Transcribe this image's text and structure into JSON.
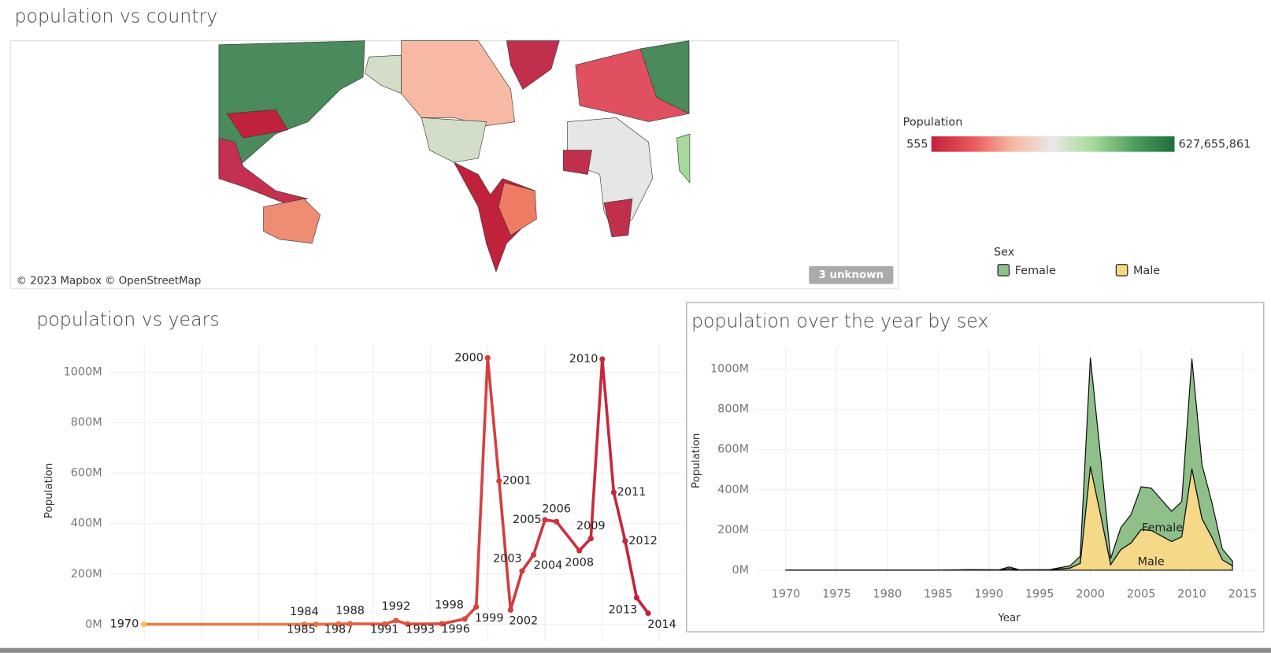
{
  "chart_data": [
    {
      "type": "map",
      "title": "population vs country",
      "attribution": "© 2023 Mapbox © OpenStreetMap",
      "unknown_note": "3 unknown",
      "legend_title": "Population",
      "color_min": 555,
      "color_max": {
        "value": 627655861,
        "label": "627,655,861"
      },
      "colors": [
        "#c0223b",
        "#e8575a",
        "#f7b8a4",
        "#e8e8e8",
        "#a6d99a",
        "#4f9e5e",
        "#1f6b3a"
      ]
    },
    {
      "type": "line",
      "title": "population vs years",
      "ylabel": "Population",
      "x": [
        1970,
        1984,
        1985,
        1987,
        1988,
        1991,
        1992,
        1993,
        1996,
        1998,
        1999,
        2000,
        2001,
        2002,
        2003,
        2004,
        2005,
        2006,
        2008,
        2009,
        2010,
        2011,
        2012,
        2013,
        2014
      ],
      "values": [
        1000000,
        1000000,
        1000000,
        2000000,
        3000000,
        2000000,
        16000000,
        2000000,
        3000000,
        22000000,
        70000000,
        1057000000,
        569000000,
        58000000,
        212000000,
        276000000,
        415000000,
        408000000,
        293000000,
        341000000,
        1052000000,
        524000000,
        331000000,
        106000000,
        45000000
      ],
      "color_range": [
        "#f5c04f",
        "#e4553f",
        "#c41f3c"
      ],
      "xlim": [
        1967,
        2017
      ],
      "ylim": [
        -64000000,
        1109000000
      ],
      "yticks": [
        {
          "value": 0,
          "label": "0M"
        },
        {
          "value": 200000000,
          "label": "200M"
        },
        {
          "value": 400000000,
          "label": "400M"
        },
        {
          "value": 600000000,
          "label": "600M"
        },
        {
          "value": 800000000,
          "label": "800M"
        },
        {
          "value": 1000000000,
          "label": "1000M"
        }
      ],
      "grid": true
    },
    {
      "type": "stacked-area",
      "title": "population over the year by sex",
      "xlabel": "Year",
      "ylabel": "Population",
      "legend_title": "Sex",
      "x": [
        1970,
        1984,
        1985,
        1987,
        1988,
        1991,
        1992,
        1993,
        1996,
        1998,
        1999,
        2000,
        2001,
        2002,
        2003,
        2004,
        2005,
        2006,
        2008,
        2009,
        2010,
        2011,
        2012,
        2013,
        2014
      ],
      "series": [
        {
          "name": "Female",
          "color": "#8fc08a",
          "values": [
            500000,
            500000,
            500000,
            1000000,
            1500000,
            1000000,
            8000000,
            1000000,
            1500000,
            11000000,
            36000000,
            541000000,
            291000000,
            30000000,
            109000000,
            141000000,
            213000000,
            210000000,
            150000000,
            175000000,
            547000000,
            268000000,
            169000000,
            54000000,
            23000000
          ]
        },
        {
          "name": "Male",
          "color": "#f5d888",
          "values": [
            500000,
            500000,
            500000,
            1000000,
            1500000,
            1000000,
            8000000,
            1000000,
            1500000,
            11000000,
            34000000,
            516000000,
            278000000,
            28000000,
            103000000,
            135000000,
            202000000,
            198000000,
            143000000,
            166000000,
            505000000,
            256000000,
            162000000,
            52000000,
            22000000
          ]
        }
      ],
      "xlim": [
        1967,
        2016.2
      ],
      "ylim": [
        -40000000,
        1109000000
      ],
      "xticks": [
        1970,
        1975,
        1980,
        1985,
        1990,
        1995,
        2000,
        2005,
        2010,
        2015
      ],
      "yticks": [
        {
          "value": 0,
          "label": "0M"
        },
        {
          "value": 200000000,
          "label": "200M"
        },
        {
          "value": 400000000,
          "label": "400M"
        },
        {
          "value": 600000000,
          "label": "600M"
        },
        {
          "value": 800000000,
          "label": "800M"
        },
        {
          "value": 1000000000,
          "label": "1000M"
        }
      ],
      "grid": true
    }
  ]
}
